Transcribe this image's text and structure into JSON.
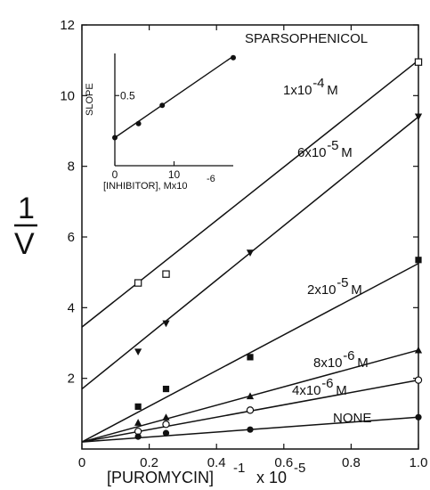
{
  "chart_data": [
    {
      "type": "line",
      "title": "SPARSOPHENICOL",
      "xlabel": "[PUROMYCIN]",
      "xlabel_exp": "-1",
      "xlabel_suffix": "x 10",
      "xlabel_suffix_exp": "-5",
      "ylabel_num": "1",
      "ylabel_den": "V",
      "xlim": [
        0,
        1.0
      ],
      "ylim": [
        0,
        12
      ],
      "x_ticks": [
        "0",
        "0.2",
        "0.4",
        "0.6",
        "0.8",
        "1.0"
      ],
      "y_ticks": [
        "2",
        "4",
        "6",
        "8",
        "10",
        "12"
      ],
      "grid": false,
      "series": [
        {
          "label_text": "1x10",
          "label_exp": "-4",
          "label_suffix": "M",
          "marker": "open-square",
          "line": [
            [
              0,
              3.45
            ],
            [
              1.0,
              11.0
            ]
          ],
          "points": [
            [
              0.167,
              4.7
            ],
            [
              0.25,
              4.95
            ],
            [
              1.0,
              10.95
            ]
          ]
        },
        {
          "label_text": "6x10",
          "label_exp": "-5",
          "label_suffix": "M",
          "marker": "filled-triangle-down",
          "line": [
            [
              0,
              1.7
            ],
            [
              1.0,
              9.4
            ]
          ],
          "points": [
            [
              0.167,
              2.75
            ],
            [
              0.25,
              3.55
            ],
            [
              0.5,
              5.55
            ],
            [
              1.0,
              9.4
            ]
          ]
        },
        {
          "label_text": "2x10",
          "label_exp": "-5",
          "label_suffix": "M",
          "marker": "filled-square",
          "line": [
            [
              0,
              0.2
            ],
            [
              1.0,
              5.25
            ]
          ],
          "points": [
            [
              0.167,
              1.2
            ],
            [
              0.25,
              1.7
            ],
            [
              0.5,
              2.6
            ],
            [
              1.0,
              5.35
            ]
          ]
        },
        {
          "label_text": "8x10",
          "label_exp": "-6",
          "label_suffix": "M",
          "marker": "filled-triangle-up",
          "line": [
            [
              0,
              0.2
            ],
            [
              1.0,
              2.8
            ]
          ],
          "points": [
            [
              0.167,
              0.75
            ],
            [
              0.25,
              0.9
            ],
            [
              0.5,
              1.5
            ],
            [
              1.0,
              2.8
            ]
          ]
        },
        {
          "label_text": "4x10",
          "label_exp": "-6",
          "label_suffix": "M",
          "marker": "open-circle",
          "line": [
            [
              0,
              0.2
            ],
            [
              1.0,
              1.95
            ]
          ],
          "points": [
            [
              0.167,
              0.5
            ],
            [
              0.25,
              0.7
            ],
            [
              0.5,
              1.1
            ],
            [
              1.0,
              1.95
            ]
          ]
        },
        {
          "label_text": "NONE",
          "label_exp": "",
          "label_suffix": "",
          "marker": "filled-circle",
          "line": [
            [
              0,
              0.2
            ],
            [
              1.0,
              0.9
            ]
          ],
          "points": [
            [
              0.167,
              0.35
            ],
            [
              0.25,
              0.45
            ],
            [
              0.5,
              0.55
            ],
            [
              1.0,
              0.9
            ]
          ]
        }
      ]
    },
    {
      "type": "line",
      "xlabel": "[INHIBITOR], Mx10",
      "xlabel_exp": "-6",
      "ylabel": "SLOPE",
      "xlim": [
        0,
        100
      ],
      "ylim": [
        0,
        0.8
      ],
      "x_ticks": [
        "0",
        "50"
      ],
      "x_tick_labels": [
        "0",
        "10"
      ],
      "y_ticks": [
        "0.5"
      ],
      "grid": false,
      "series": [
        {
          "marker": "filled-circle",
          "line": [
            [
              0,
              0.2
            ],
            [
              100,
              0.78
            ]
          ],
          "points": [
            [
              0,
              0.2
            ],
            [
              20,
              0.3
            ],
            [
              40,
              0.43
            ],
            [
              100,
              0.77
            ]
          ]
        }
      ]
    }
  ]
}
